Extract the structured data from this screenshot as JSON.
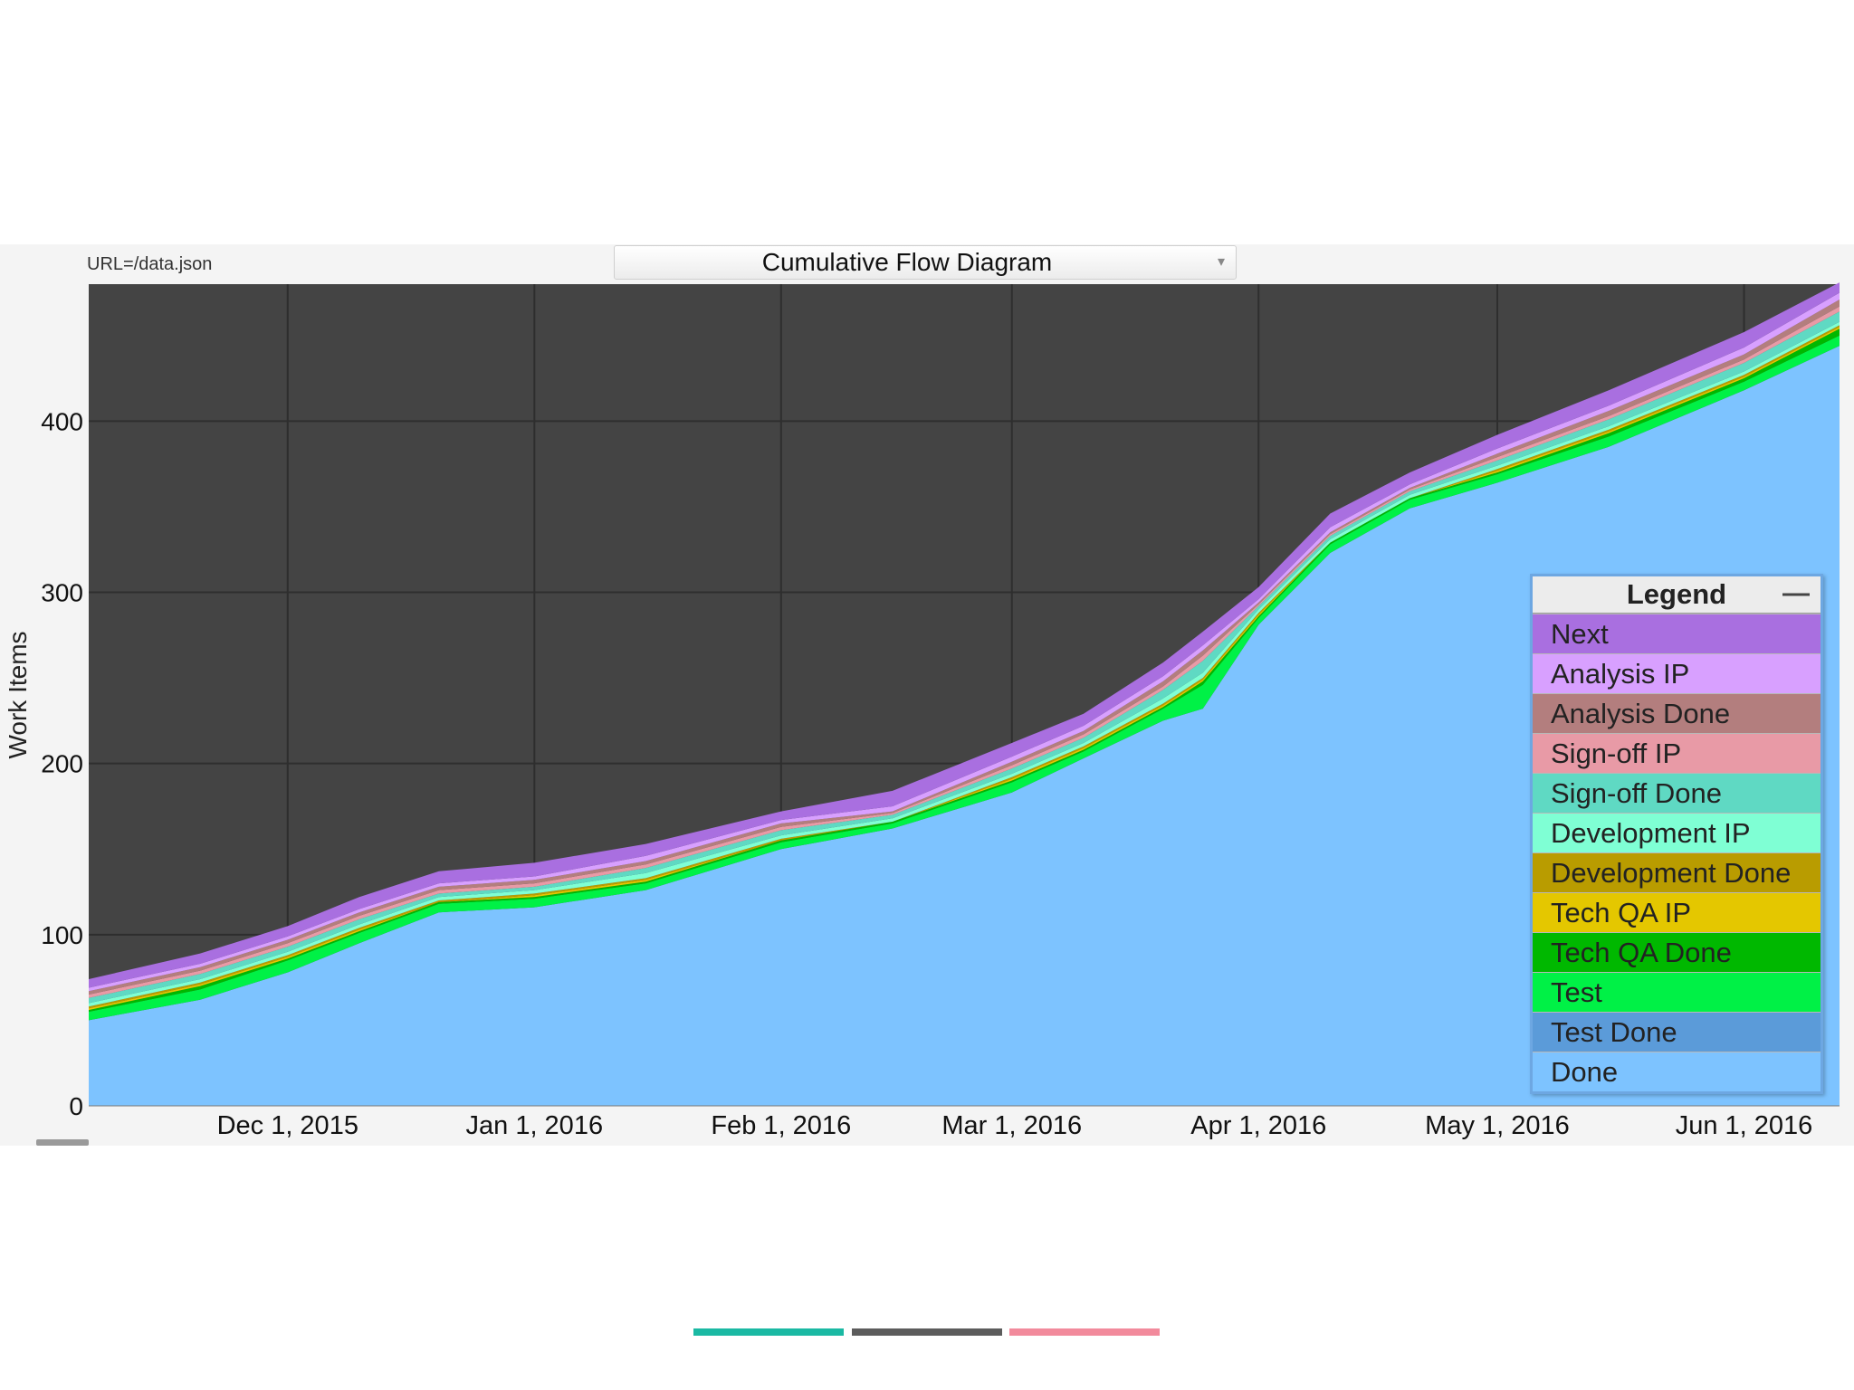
{
  "header": {
    "url_text": "URL=/data.json",
    "chart_selector_value": "Cumulative Flow Diagram",
    "chart_selector_caret": "▾"
  },
  "legend": {
    "title": "Legend",
    "collapse_glyph": "—"
  },
  "colors": {
    "plot_background": "#444444",
    "grid": "#2e2e2e",
    "legend_border": "#6da7e2",
    "deco_bars": [
      "#1ab9a3",
      "#5c5c5c",
      "#f28a9c"
    ]
  },
  "chart_data": {
    "type": "area",
    "stacked": true,
    "ylabel": "Work Items",
    "ylim": [
      0,
      480
    ],
    "yticks": [
      0,
      100,
      200,
      300,
      400
    ],
    "xlim": [
      "2015-11-06",
      "2016-06-13"
    ],
    "xticks": [
      {
        "date": "2015-12-01",
        "label": "Dec 1, 2015"
      },
      {
        "date": "2016-01-01",
        "label": "Jan 1, 2016"
      },
      {
        "date": "2016-02-01",
        "label": "Feb 1, 2016"
      },
      {
        "date": "2016-03-01",
        "label": "Mar 1, 2016"
      },
      {
        "date": "2016-04-01",
        "label": "Apr 1, 2016"
      },
      {
        "date": "2016-05-01",
        "label": "May 1, 2016"
      },
      {
        "date": "2016-06-01",
        "label": "Jun 1, 2016"
      }
    ],
    "grid": true,
    "legend_position": "bottom-right",
    "x": [
      "2015-11-06",
      "2015-11-20",
      "2015-12-01",
      "2015-12-10",
      "2015-12-20",
      "2016-01-01",
      "2016-01-15",
      "2016-02-01",
      "2016-02-15",
      "2016-03-01",
      "2016-03-10",
      "2016-03-20",
      "2016-03-25",
      "2016-04-01",
      "2016-04-10",
      "2016-04-20",
      "2016-05-01",
      "2016-05-15",
      "2016-06-01",
      "2016-06-13"
    ],
    "series": [
      {
        "name": "Done",
        "color": "#7dc3ff",
        "values": [
          50,
          62,
          78,
          95,
          113,
          116,
          126,
          150,
          162,
          183,
          203,
          225,
          232,
          281,
          323,
          349,
          364,
          385,
          418,
          444
        ]
      },
      {
        "name": "Test Done",
        "color": "#5b9bd9",
        "values": [
          0,
          0,
          0,
          0,
          0,
          0,
          0,
          0,
          0,
          0,
          0,
          0,
          0,
          0,
          0,
          0,
          0,
          0,
          0,
          0
        ]
      },
      {
        "name": "Test",
        "color": "#00f146",
        "values": [
          5,
          6,
          7,
          6,
          5,
          5,
          4,
          4,
          3,
          6,
          4,
          7,
          14,
          4,
          5,
          5,
          5,
          6,
          5,
          6
        ]
      },
      {
        "name": "Tech QA Done",
        "color": "#00b800",
        "values": [
          1,
          2,
          1,
          1,
          1,
          1,
          1,
          1,
          1,
          1,
          1,
          1,
          2,
          1,
          1,
          1,
          1,
          2,
          2,
          4
        ]
      },
      {
        "name": "Tech QA IP",
        "color": "#e4c700",
        "values": [
          1,
          1,
          1,
          1,
          0,
          1,
          1,
          0,
          0,
          1,
          1,
          1,
          1,
          1,
          0,
          0,
          1,
          1,
          1,
          1
        ]
      },
      {
        "name": "Development Done",
        "color": "#b99c00",
        "values": [
          1,
          1,
          1,
          1,
          1,
          1,
          1,
          1,
          0,
          1,
          1,
          1,
          1,
          1,
          0,
          0,
          1,
          1,
          1,
          1
        ]
      },
      {
        "name": "Development IP",
        "color": "#7fffd4",
        "values": [
          2,
          2,
          2,
          2,
          2,
          2,
          3,
          2,
          2,
          2,
          2,
          3,
          3,
          2,
          2,
          2,
          2,
          2,
          2,
          2
        ]
      },
      {
        "name": "Sign-off Done",
        "color": "#5fd9c3",
        "values": [
          3,
          3,
          3,
          3,
          2,
          2,
          3,
          3,
          2,
          3,
          3,
          5,
          7,
          2,
          2,
          2,
          3,
          4,
          5,
          6
        ]
      },
      {
        "name": "Sign-off IP",
        "color": "#e89aa6",
        "values": [
          2,
          2,
          2,
          2,
          2,
          2,
          2,
          2,
          1,
          2,
          2,
          2,
          3,
          1,
          1,
          1,
          2,
          2,
          2,
          3
        ]
      },
      {
        "name": "Analysis Done",
        "color": "#b37e7e",
        "values": [
          2,
          2,
          2,
          2,
          2,
          2,
          2,
          2,
          1,
          2,
          2,
          3,
          3,
          1,
          1,
          1,
          2,
          3,
          3,
          4
        ]
      },
      {
        "name": "Analysis IP",
        "color": "#d8a0ff",
        "values": [
          2,
          2,
          2,
          2,
          2,
          2,
          3,
          2,
          3,
          3,
          3,
          3,
          3,
          2,
          3,
          2,
          3,
          3,
          4,
          4
        ]
      },
      {
        "name": "Next",
        "color": "#a96fe0",
        "values": [
          5,
          6,
          6,
          7,
          7,
          8,
          7,
          5,
          9,
          8,
          7,
          8,
          8,
          7,
          8,
          7,
          8,
          9,
          9,
          6
        ]
      }
    ],
    "legend_order": [
      "Next",
      "Analysis IP",
      "Analysis Done",
      "Sign-off IP",
      "Sign-off Done",
      "Development IP",
      "Development Done",
      "Tech QA IP",
      "Tech QA Done",
      "Test",
      "Test Done",
      "Done"
    ]
  }
}
